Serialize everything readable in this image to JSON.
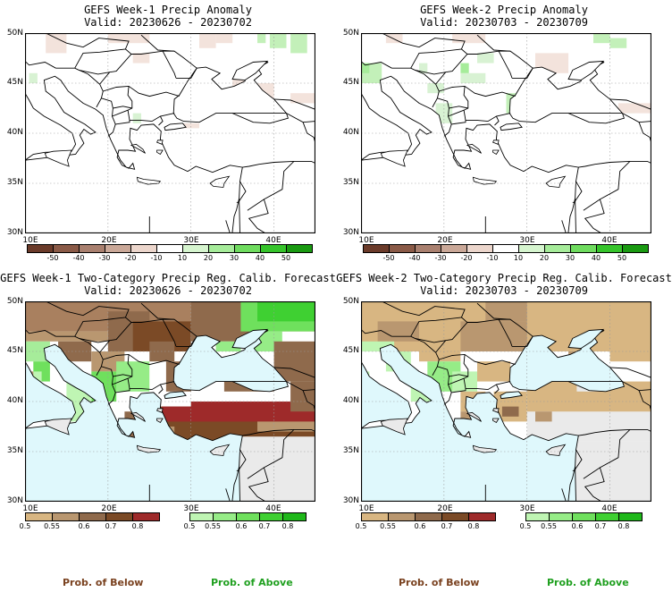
{
  "panels": [
    {
      "title": "GEFS Week-1 Precip Anomaly",
      "valid": "Valid: 20230626 - 20230702",
      "kind": "anomaly"
    },
    {
      "title": "GEFS Week-2 Precip Anomaly",
      "valid": "Valid: 20230703 - 20230709",
      "kind": "anomaly"
    },
    {
      "title": "GEFS Week-1 Two-Category Precip Reg. Calib. Forecast",
      "valid": "Valid: 20230626 - 20230702",
      "kind": "prob"
    },
    {
      "title": "GEFS Week-2 Two-Category Precip Reg. Calib. Forecast",
      "valid": "Valid: 20230703 - 20230709",
      "kind": "prob"
    }
  ],
  "axes": {
    "lat_labels": [
      "50N",
      "45N",
      "40N",
      "35N",
      "30N"
    ],
    "lon_labels": [
      "10E",
      "20E",
      "30E",
      "40E"
    ]
  },
  "anomaly_colorbar": {
    "labels": [
      "-50",
      "-40",
      "-30",
      "-20",
      "-10",
      "10",
      "20",
      "30",
      "40",
      "50"
    ],
    "colors": [
      "#6b3b2a",
      "#8a5a47",
      "#a9806f",
      "#caa898",
      "#ecd6cc",
      "#ffffff",
      "#d6f5cf",
      "#a6ec9a",
      "#6fdc5f",
      "#36c42b",
      "#1a9a12"
    ]
  },
  "prob_colorbar_below": {
    "labels": [
      "0.5",
      "0.55",
      "0.6",
      "0.7",
      "0.8"
    ],
    "colors": [
      "#d8b682",
      "#b99770",
      "#8f6a4c",
      "#7b4a26",
      "#9e2a2a"
    ]
  },
  "prob_colorbar_above": {
    "labels": [
      "0.5",
      "0.55",
      "0.6",
      "0.7",
      "0.8"
    ],
    "colors": [
      "#bff5b3",
      "#96ec87",
      "#6fe05d",
      "#3fd032",
      "#1fb81a"
    ]
  },
  "footer": {
    "below_label": "Prob. of Below",
    "above_label": "Prob. of Above",
    "below_color": "#7a4220",
    "above_color": "#20a020"
  }
}
